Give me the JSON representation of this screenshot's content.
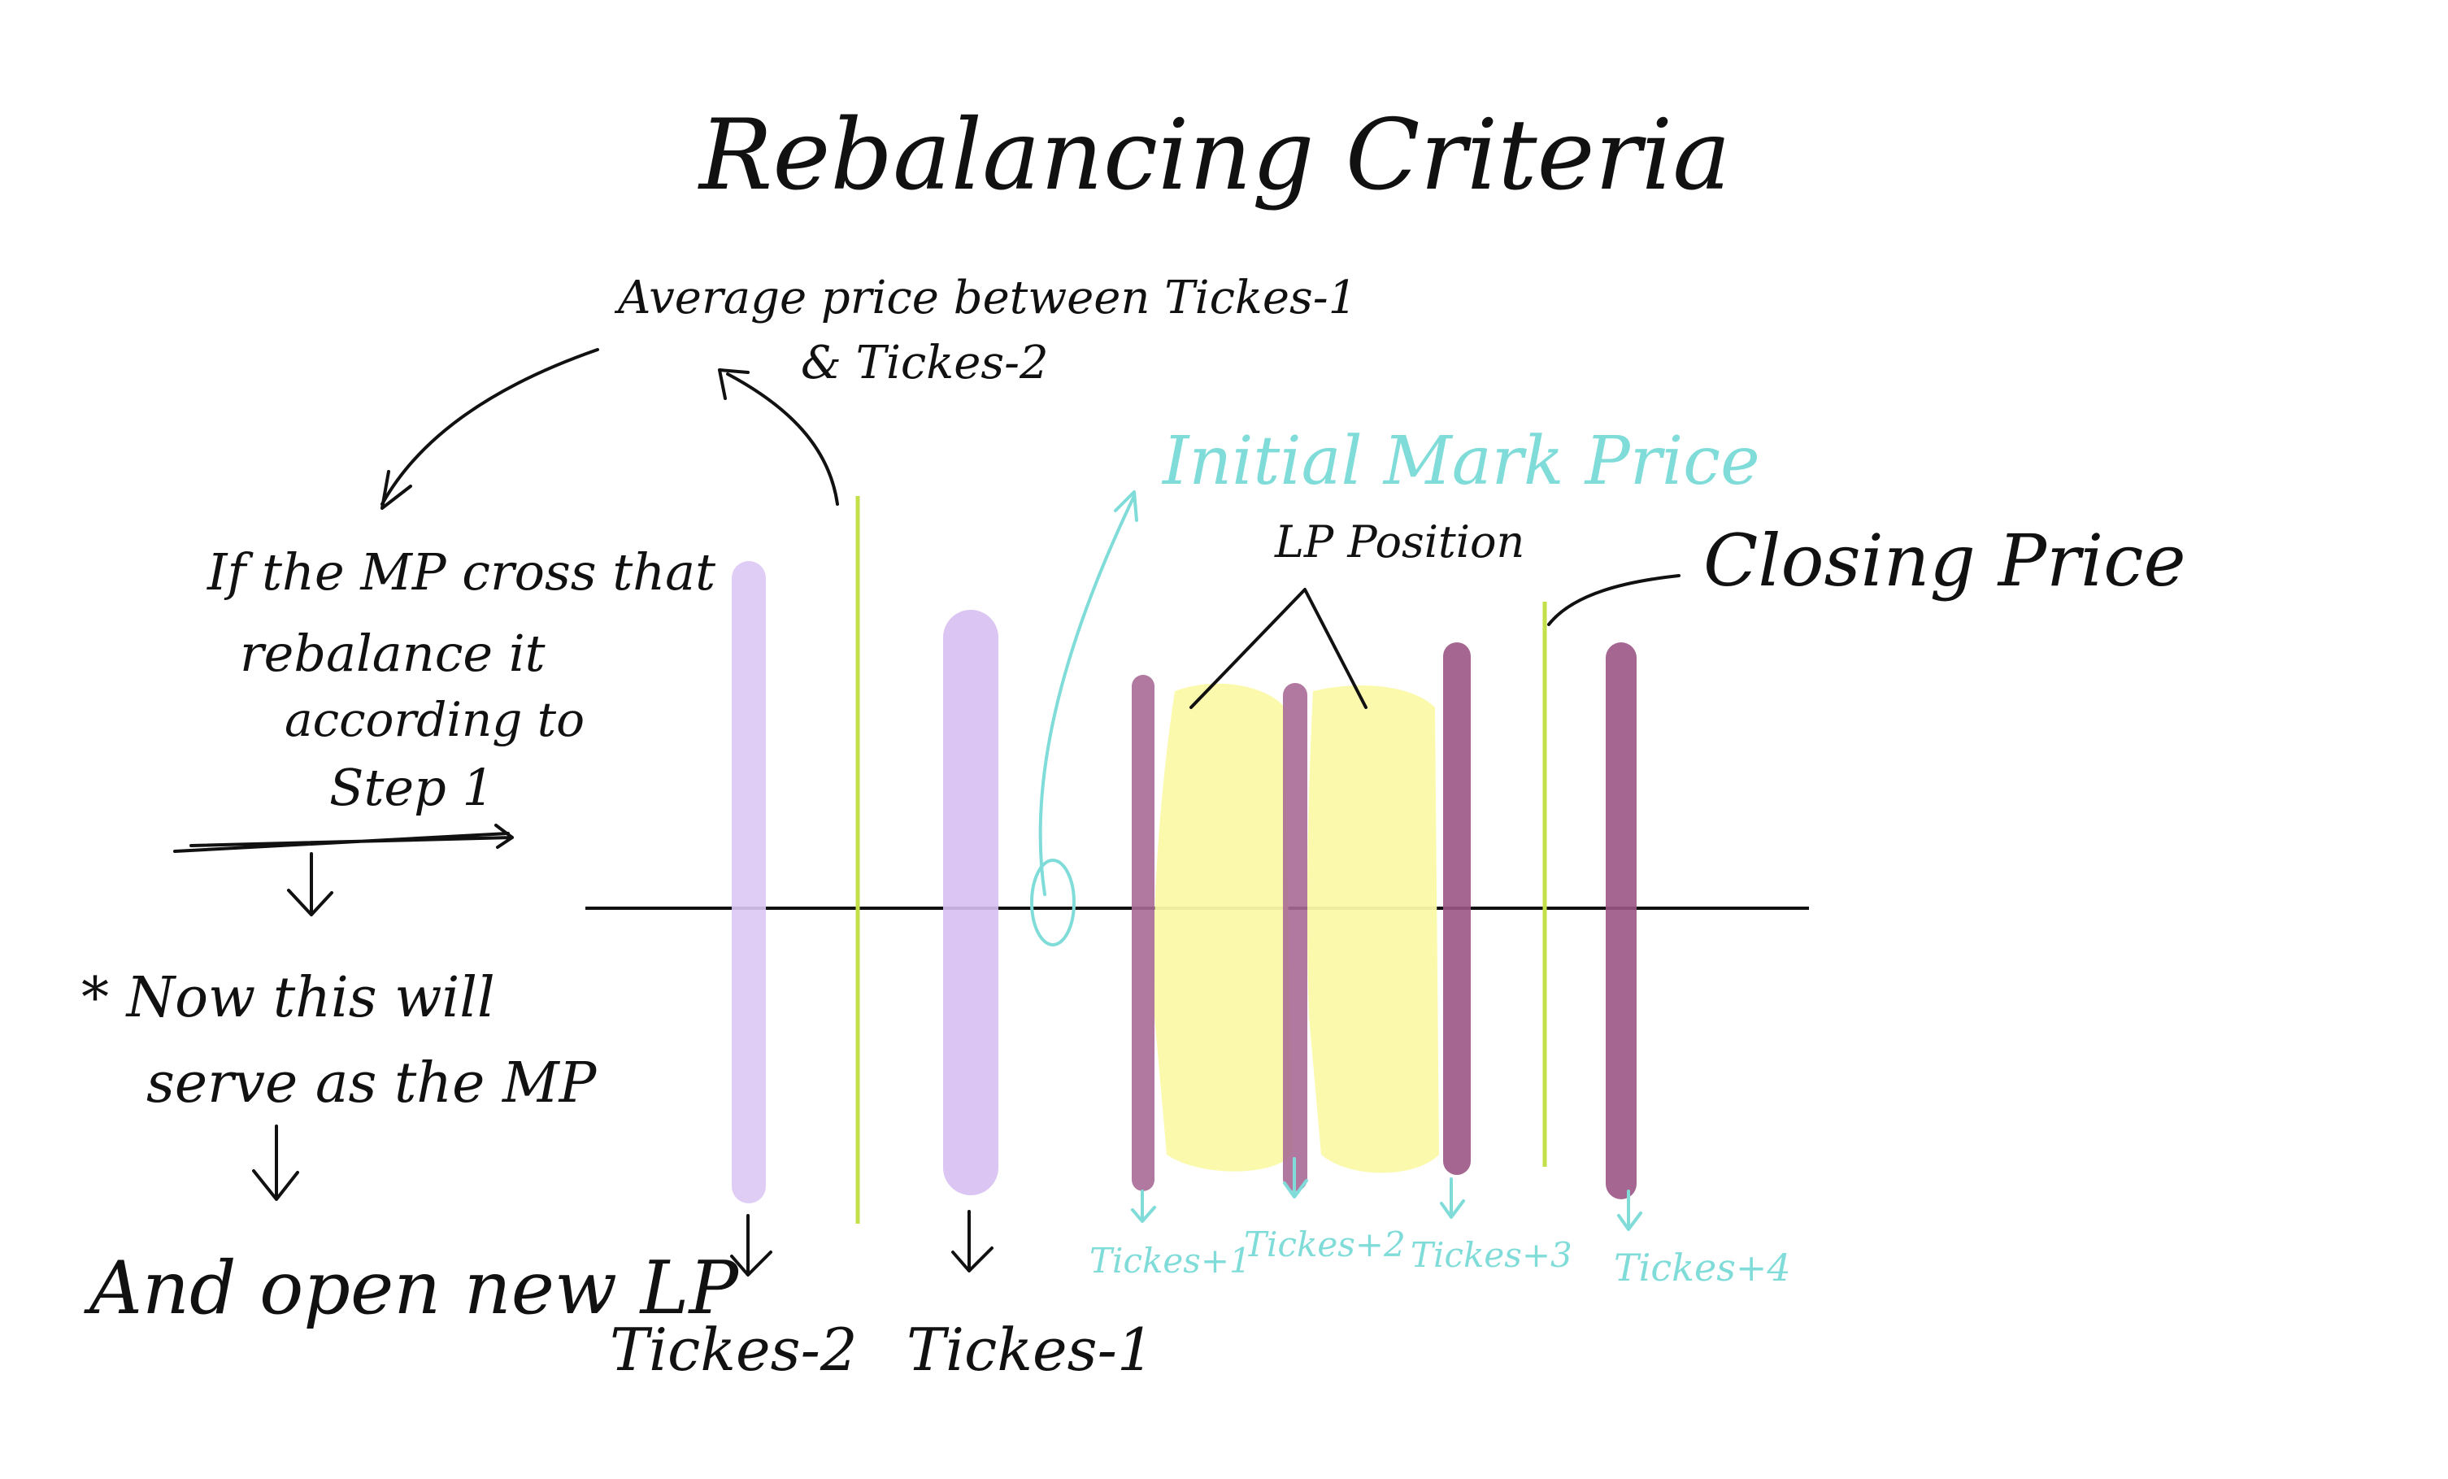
{
  "title": "Rebalancing Criteria",
  "annotations": {
    "average_price_line1": "Average price between Tickes-1",
    "average_price_line2": "& Tickes-2",
    "initial_market_price": "Initial Mark Price",
    "lp_position": "LP Position",
    "closing_price": "Closing Price"
  },
  "left_notes": {
    "cross_line1": "If the MP cross that",
    "cross_line2": "rebalance it",
    "cross_line3": "according to",
    "cross_line4": "Step 1",
    "serve_line1": "* Now this will",
    "serve_line2": "serve as the MP",
    "open_lp": "And open new LP"
  },
  "tick_labels": {
    "tick_minus_2": "Tickes-2",
    "tick_minus_1": "Tickes-1",
    "tick_plus_1": "Tickes+1",
    "tick_plus_2": "Tickes+2",
    "tick_plus_3": "Tickes+3",
    "tick_plus_4": "Tickes+4"
  },
  "colors": {
    "lavender": "#dcc8f4",
    "lavender_strong": "#d6bff2",
    "mauve": "#a86a96",
    "mauve_dark": "#9b5585",
    "yellow": "#fbf9a8",
    "lime": "#c3df4a",
    "cyan": "#7fdcd8",
    "ink": "#111111"
  }
}
